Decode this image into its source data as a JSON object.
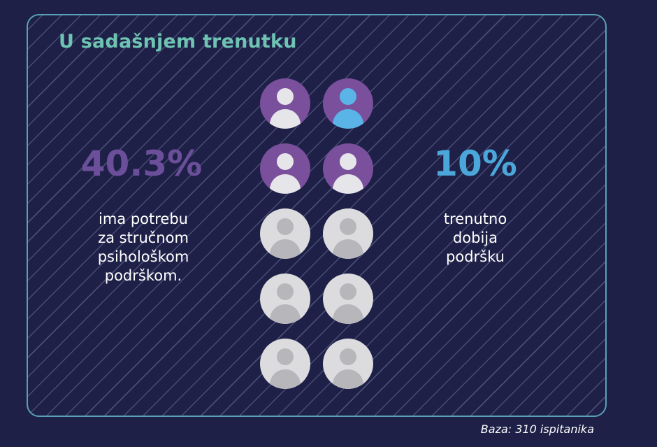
{
  "title": "U sadašnjem trenutku",
  "chart_data": {
    "type": "pictogram",
    "total_icons": 10,
    "stats": [
      {
        "value": 40.3,
        "label": "40.3%",
        "description": [
          "ima potrebu",
          "za stručnom",
          "psihološkom",
          "podrškom."
        ],
        "color": "#6c4f9b",
        "icons": 4
      },
      {
        "value": 10,
        "label": "10%",
        "description": [
          "trenutno",
          "dobija",
          "podršku"
        ],
        "color": "#4ba6d9",
        "icons": 1
      }
    ],
    "icons": [
      {
        "state": "need"
      },
      {
        "state": "support"
      },
      {
        "state": "need"
      },
      {
        "state": "need"
      },
      {
        "state": "none"
      },
      {
        "state": "none"
      },
      {
        "state": "none"
      },
      {
        "state": "none"
      },
      {
        "state": "none"
      },
      {
        "state": "none"
      }
    ],
    "palette": {
      "need_bg": "#7a4f9c",
      "need_fg": "#e6e6ea",
      "support_bg": "#7a4f9c",
      "support_fg": "#5ab4e8",
      "none_bg": "#dcdcdf",
      "none_fg": "#b7b7bb"
    }
  },
  "footer": "Baza: 310 ispitanika"
}
